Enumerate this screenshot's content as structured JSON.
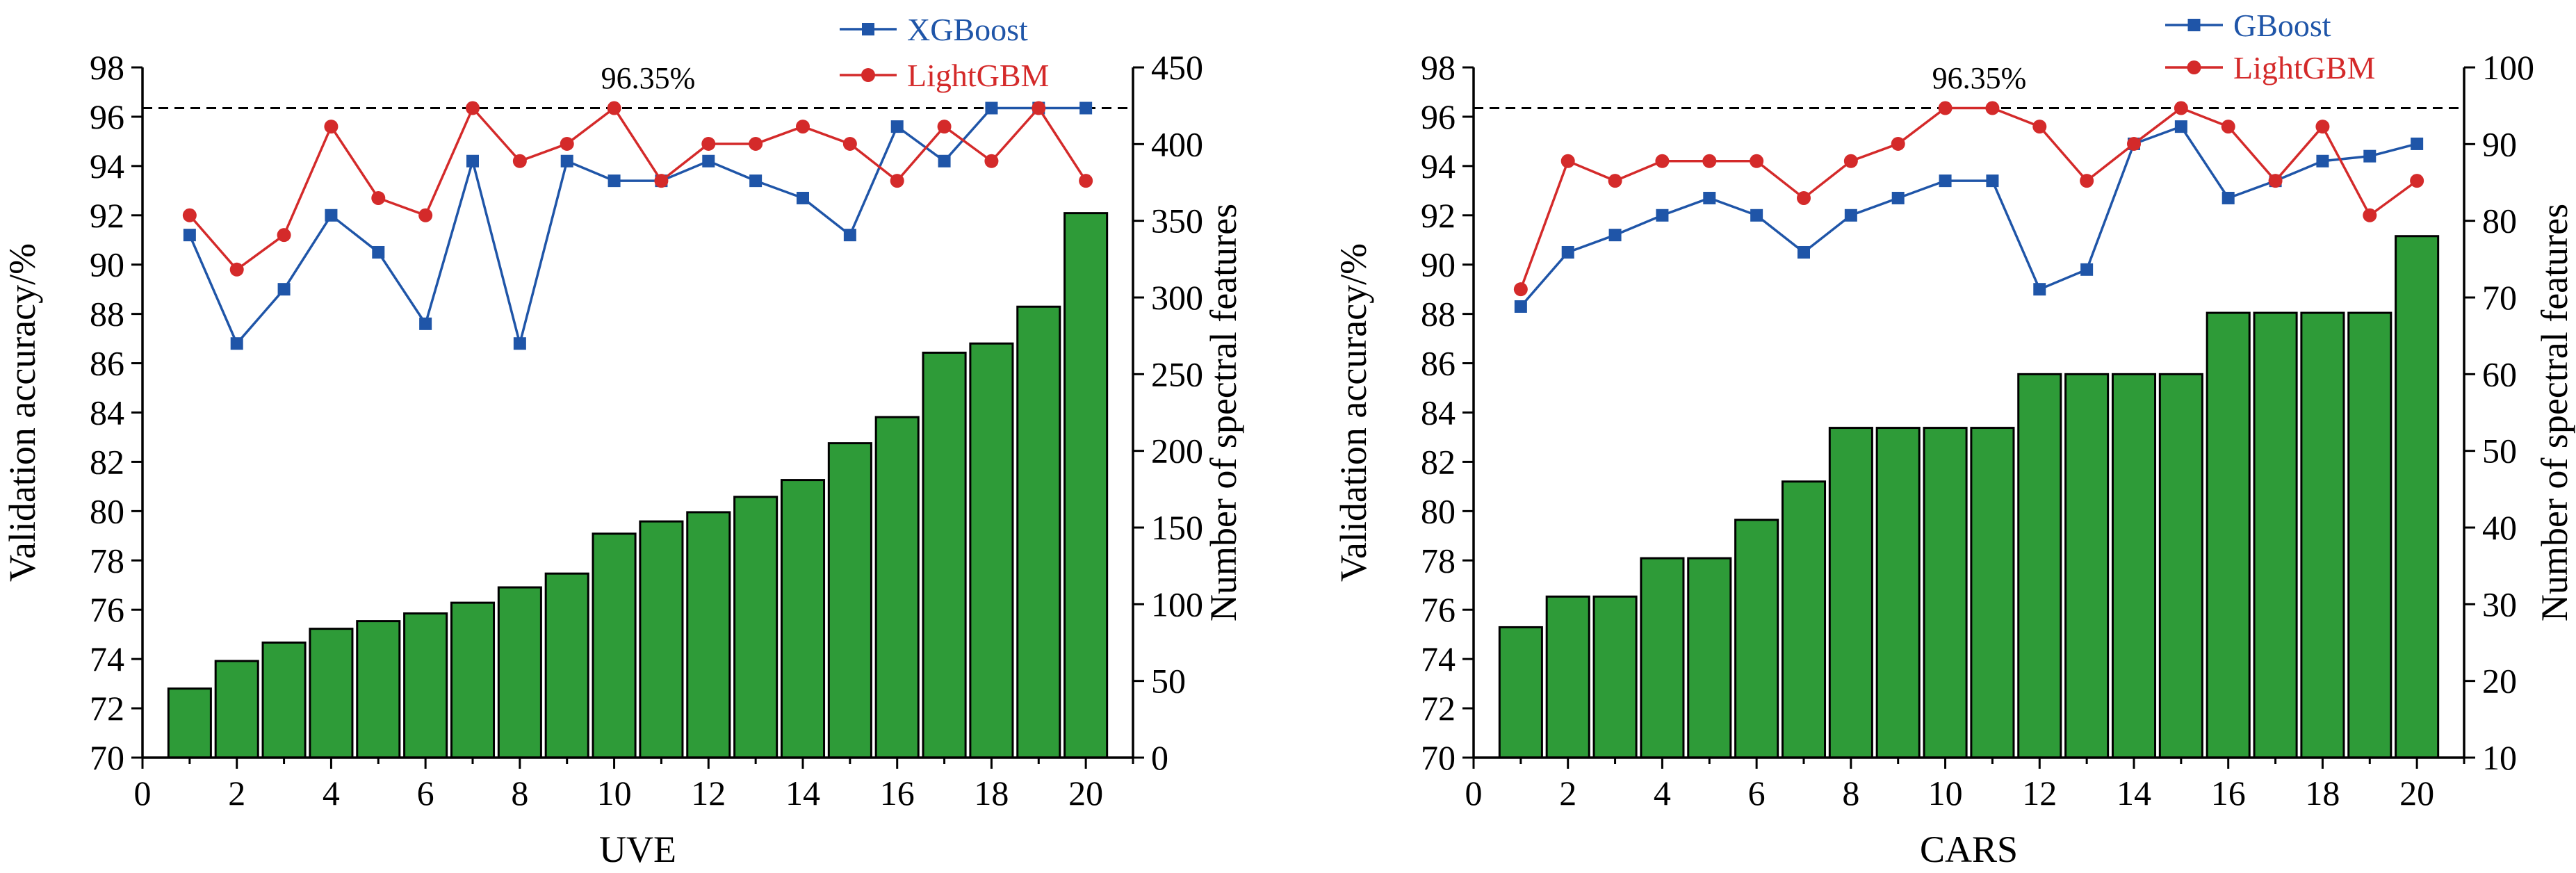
{
  "chart_data": [
    {
      "type": "bar",
      "xlabel": "UVE",
      "ylabel": "Validation accuracy/%",
      "y2label": "Number of spectral features",
      "xlim": [
        0,
        21
      ],
      "xticks": [
        0,
        2,
        4,
        6,
        8,
        10,
        12,
        14,
        16,
        18,
        20
      ],
      "ylim": [
        70,
        98
      ],
      "yticks": [
        70,
        72,
        74,
        76,
        78,
        80,
        82,
        84,
        86,
        88,
        90,
        92,
        94,
        96,
        98
      ],
      "y2lim": [
        0,
        450
      ],
      "y2ticks": [
        0,
        50,
        100,
        150,
        200,
        250,
        300,
        350,
        400,
        450
      ],
      "x": [
        1,
        2,
        3,
        4,
        5,
        6,
        7,
        8,
        9,
        10,
        11,
        12,
        13,
        14,
        15,
        16,
        17,
        18,
        19,
        20
      ],
      "bar_values": [
        45,
        63,
        75,
        84,
        89,
        94,
        101,
        111,
        120,
        146,
        154,
        160,
        170,
        181,
        205,
        222,
        264,
        270,
        294,
        355
      ],
      "bar_color": "#2e9b38",
      "series": [
        {
          "name": "XGBoost",
          "color": "#1f55a8",
          "marker": "square",
          "values": [
            91.2,
            86.8,
            89.0,
            92.0,
            90.5,
            87.6,
            94.2,
            86.8,
            94.2,
            93.4,
            93.4,
            94.2,
            93.4,
            92.7,
            91.2,
            95.6,
            94.2,
            96.35,
            96.35,
            96.35
          ]
        },
        {
          "name": "LightGBM",
          "color": "#d42a2a",
          "marker": "circle",
          "values": [
            92.0,
            89.8,
            91.2,
            95.6,
            92.7,
            92.0,
            96.35,
            94.2,
            94.9,
            96.35,
            93.4,
            94.9,
            94.9,
            95.6,
            94.9,
            93.4,
            95.6,
            94.2,
            96.35,
            93.4
          ]
        }
      ],
      "reference_line": {
        "value": 96.35,
        "label": "96.35%"
      },
      "legend_position": "top-right",
      "grid": false
    },
    {
      "type": "bar",
      "xlabel": "CARS",
      "ylabel": "Validation accuracy/%",
      "y2label": "Number of spectral features",
      "xlim": [
        0,
        21
      ],
      "xticks": [
        0,
        2,
        4,
        6,
        8,
        10,
        12,
        14,
        16,
        18,
        20
      ],
      "ylim": [
        70,
        98
      ],
      "yticks": [
        70,
        72,
        74,
        76,
        78,
        80,
        82,
        84,
        86,
        88,
        90,
        92,
        94,
        96,
        98
      ],
      "y2lim": [
        10,
        100
      ],
      "y2ticks": [
        10,
        20,
        30,
        40,
        50,
        60,
        70,
        80,
        90,
        100
      ],
      "x": [
        1,
        2,
        3,
        4,
        5,
        6,
        7,
        8,
        9,
        10,
        11,
        12,
        13,
        14,
        15,
        16,
        17,
        18,
        19,
        20
      ],
      "bar_values": [
        27,
        31,
        31,
        36,
        36,
        41,
        46,
        53,
        53,
        53,
        53,
        60,
        60,
        60,
        60,
        68,
        68,
        68,
        68,
        78
      ],
      "bar_color": "#2e9b38",
      "series": [
        {
          "name": "GBoost",
          "color": "#1f55a8",
          "marker": "square",
          "values": [
            88.3,
            90.5,
            91.2,
            92.0,
            92.7,
            92.0,
            90.5,
            92.0,
            92.7,
            93.4,
            93.4,
            89.0,
            89.8,
            94.9,
            95.6,
            92.7,
            93.4,
            94.2,
            94.4,
            94.9
          ]
        },
        {
          "name": "LightGBM",
          "color": "#d42a2a",
          "marker": "circle",
          "values": [
            89.0,
            94.2,
            93.4,
            94.2,
            94.2,
            94.2,
            92.7,
            94.2,
            94.9,
            96.35,
            96.35,
            95.6,
            93.4,
            94.9,
            96.35,
            95.6,
            93.4,
            95.6,
            92.0,
            93.4
          ]
        }
      ],
      "reference_line": {
        "value": 96.35,
        "label": "96.35%"
      },
      "legend_position": "top-right",
      "grid": false
    }
  ]
}
